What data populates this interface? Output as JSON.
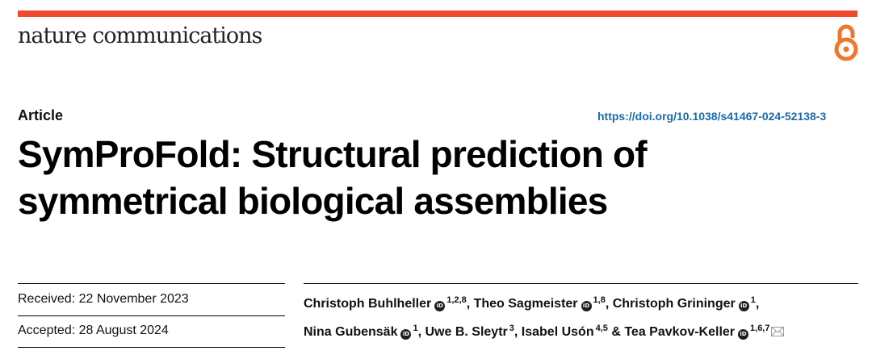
{
  "journal": {
    "name": "nature communications"
  },
  "article": {
    "type": "Article",
    "doi": "https://doi.org/10.1038/s41467-024-52138-3",
    "title_line1": "SymProFold: Structural prediction of",
    "title_line2": "symmetrical biological assemblies"
  },
  "dates": {
    "received_label": "Received:",
    "received_value": "22 November 2023",
    "accepted_label": "Accepted:",
    "accepted_value": "28 August 2024"
  },
  "authors": [
    {
      "name": "Christoph Buhlheller",
      "orcid": true,
      "aff": "1,2,8",
      "sep": ", "
    },
    {
      "name": "Theo Sagmeister",
      "orcid": true,
      "aff": "1,8",
      "sep": ", "
    },
    {
      "name": "Christoph Grininger",
      "orcid": true,
      "aff": "1",
      "sep": ","
    },
    {
      "name": "Nina Gubensäk",
      "orcid": true,
      "aff": "1",
      "sep": ", "
    },
    {
      "name": "Uwe B. Sleytr",
      "orcid": false,
      "aff": "3",
      "sep": ", "
    },
    {
      "name": "Isabel Usón",
      "orcid": false,
      "aff": "4,5",
      "sep": " & "
    },
    {
      "name": "Tea Pavkov-Keller",
      "orcid": true,
      "aff": "1,6,7",
      "sep": ""
    }
  ],
  "colors": {
    "accent_bar": "#ef4b2f",
    "open_access_icon": "#f0762b",
    "doi_link": "#1c6aa7"
  },
  "icons": [
    "open-access-icon",
    "orcid-icon",
    "envelope-icon"
  ]
}
